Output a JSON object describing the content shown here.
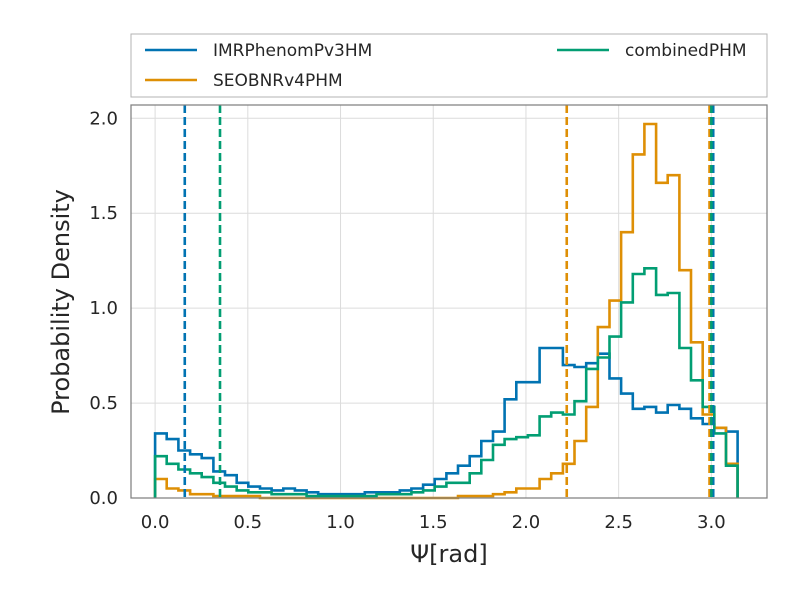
{
  "chart_data": {
    "type": "histogram",
    "title": "",
    "xlabel": "Ψ[rad]",
    "ylabel": "Probability Density",
    "xlim": [
      -0.13,
      3.3
    ],
    "ylim": [
      0,
      2.07
    ],
    "xticks": [
      0.0,
      0.5,
      1.0,
      1.5,
      2.0,
      2.5,
      3.0
    ],
    "xtick_labels": [
      "0.0",
      "0.5",
      "1.0",
      "1.5",
      "2.0",
      "2.5",
      "3.0"
    ],
    "yticks": [
      0.0,
      0.5,
      1.0,
      1.5,
      2.0
    ],
    "ytick_labels": [
      "0.0",
      "0.5",
      "1.0",
      "1.5",
      "2.0"
    ],
    "grid": true,
    "legend_position": "above plot, two columns",
    "bin_edges": [
      0.0,
      0.0628,
      0.1257,
      0.1885,
      0.2513,
      0.3142,
      0.377,
      0.4398,
      0.5027,
      0.5655,
      0.6283,
      0.6912,
      0.754,
      0.8168,
      0.8796,
      0.9425,
      1.0053,
      1.0681,
      1.131,
      1.1938,
      1.2566,
      1.3195,
      1.3823,
      1.4451,
      1.508,
      1.5708,
      1.6336,
      1.6965,
      1.7593,
      1.8221,
      1.885,
      1.9478,
      2.0106,
      2.0735,
      2.1363,
      2.1991,
      2.2619,
      2.3248,
      2.3876,
      2.4504,
      2.5133,
      2.5761,
      2.6389,
      2.7018,
      2.7646,
      2.8274,
      2.8903,
      2.9531,
      3.0159,
      3.0788,
      3.1416
    ],
    "series": [
      {
        "name": "IMRPhenomPv3HM",
        "color": "#0173b2",
        "densities": [
          0.34,
          0.31,
          0.25,
          0.23,
          0.21,
          0.14,
          0.12,
          0.08,
          0.06,
          0.05,
          0.04,
          0.05,
          0.04,
          0.03,
          0.02,
          0.02,
          0.02,
          0.02,
          0.03,
          0.03,
          0.03,
          0.04,
          0.05,
          0.07,
          0.1,
          0.13,
          0.17,
          0.22,
          0.3,
          0.35,
          0.52,
          0.61,
          0.61,
          0.79,
          0.79,
          0.7,
          0.69,
          0.71,
          0.76,
          0.63,
          0.55,
          0.47,
          0.48,
          0.45,
          0.49,
          0.47,
          0.42,
          0.39,
          0.37,
          0.35
        ],
        "credible_interval": [
          0.16,
          3.01
        ]
      },
      {
        "name": "SEOBNRv4PHM",
        "color": "#de8f05",
        "densities": [
          0.1,
          0.05,
          0.04,
          0.02,
          0.02,
          0.01,
          0.01,
          0.01,
          0.01,
          0.0,
          0.0,
          0.0,
          0.0,
          0.0,
          0.0,
          0.0,
          0.0,
          0.0,
          0.0,
          0.0,
          0.0,
          0.0,
          0.0,
          0.0,
          0.0,
          0.0,
          0.01,
          0.01,
          0.01,
          0.02,
          0.03,
          0.05,
          0.05,
          0.1,
          0.13,
          0.18,
          0.3,
          0.48,
          0.9,
          1.04,
          1.4,
          1.81,
          1.97,
          1.66,
          1.7,
          1.2,
          0.82,
          0.44,
          0.37,
          0.18
        ],
        "credible_interval": [
          2.22,
          2.99
        ]
      },
      {
        "name": "combinedPHM",
        "color": "#029e73",
        "densities": [
          0.22,
          0.18,
          0.15,
          0.13,
          0.11,
          0.08,
          0.06,
          0.04,
          0.03,
          0.03,
          0.02,
          0.02,
          0.02,
          0.01,
          0.01,
          0.01,
          0.01,
          0.01,
          0.01,
          0.02,
          0.02,
          0.02,
          0.03,
          0.04,
          0.06,
          0.08,
          0.08,
          0.13,
          0.2,
          0.28,
          0.31,
          0.32,
          0.33,
          0.43,
          0.45,
          0.44,
          0.51,
          0.68,
          0.74,
          0.85,
          1.03,
          1.18,
          1.21,
          1.07,
          1.08,
          0.79,
          0.62,
          0.48,
          0.34,
          0.17
        ],
        "credible_interval": [
          0.35,
          3.0
        ]
      }
    ]
  }
}
